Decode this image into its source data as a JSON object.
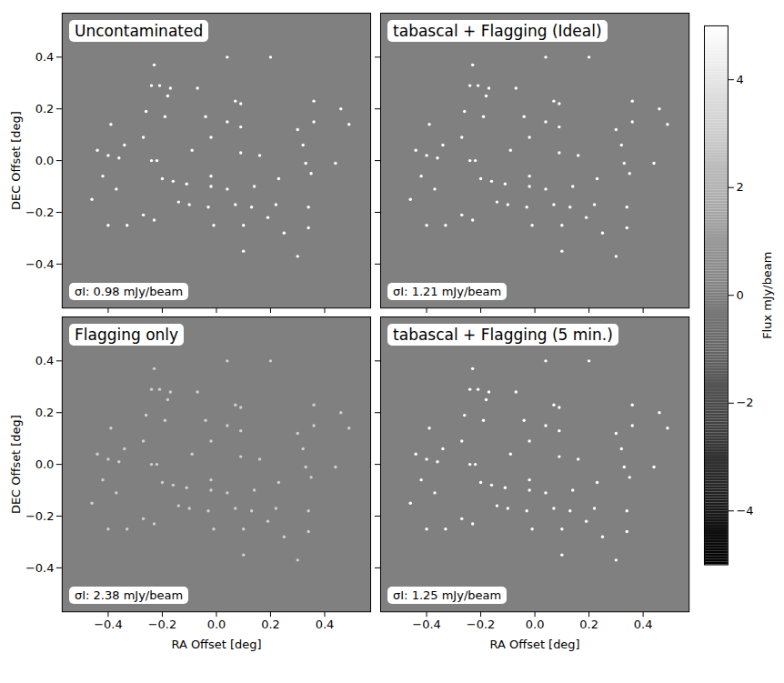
{
  "chart_data": [
    {
      "type": "scatter",
      "title": "Uncontaminated",
      "annotation": "σI: 0.98 mJy/beam",
      "color": "#ffffff",
      "ylabel": "DEC Offset [deg]",
      "tick_labels": "y",
      "xlim": [
        -0.57,
        0.57
      ],
      "ylim": [
        -0.57,
        0.57
      ],
      "xticks": [
        {
          "value": -0.4,
          "label": "−0.4"
        },
        {
          "value": -0.2,
          "label": "−0.2"
        },
        {
          "value": 0,
          "label": "0.0"
        },
        0.2,
        0.4
      ],
      "yticks": [
        {
          "value": -0.4,
          "label": "−0.4"
        },
        {
          "value": -0.2,
          "label": "−0.2"
        },
        {
          "value": 0,
          "label": "0.0"
        },
        0.2,
        0.4
      ],
      "x": [
        -0.07,
        0.04,
        0.2,
        0.36,
        -0.23,
        -0.24,
        -0.21,
        -0.17,
        -0.18,
        0.07,
        0.09,
        -0.26,
        -0.19,
        -0.04,
        0.04,
        0.09,
        0.3,
        0.36,
        0.46,
        0.49,
        -0.39,
        -0.34,
        -0.44,
        -0.4,
        -0.36,
        -0.27,
        -0.24,
        -0.22,
        -0.09,
        -0.02,
        0.09,
        0.16,
        0.32,
        0.33,
        0.44,
        -0.42,
        -0.46,
        -0.37,
        -0.2,
        -0.16,
        -0.11,
        -0.02,
        -0.02,
        0.04,
        0.14,
        0.23,
        0.35,
        -0.27,
        -0.14,
        -0.1,
        -0.03,
        0.07,
        0.13,
        0.22,
        0.34,
        0.34,
        -0.4,
        -0.33,
        -0.23,
        -0.01,
        0.1,
        0.19,
        0.25,
        0.1,
        0.3
      ],
      "y": [
        0.28,
        0.4,
        0.4,
        0.23,
        0.37,
        0.29,
        0.29,
        0.28,
        0.25,
        0.23,
        0.22,
        0.19,
        0.17,
        0.17,
        0.15,
        0.13,
        0.12,
        0.15,
        0.2,
        0.14,
        0.14,
        0.06,
        0.04,
        0.02,
        0.01,
        0.09,
        0.0,
        0.0,
        0.04,
        0.09,
        0.03,
        0.02,
        0.06,
        -0.01,
        -0.01,
        -0.06,
        -0.15,
        -0.11,
        -0.07,
        -0.08,
        -0.09,
        -0.06,
        -0.1,
        -0.11,
        -0.1,
        -0.07,
        -0.05,
        -0.21,
        -0.16,
        -0.17,
        -0.18,
        -0.17,
        -0.18,
        -0.17,
        -0.18,
        -0.26,
        -0.25,
        -0.25,
        -0.23,
        -0.25,
        -0.25,
        -0.22,
        -0.28,
        -0.35,
        -0.37
      ]
    },
    {
      "type": "scatter",
      "title": "tabascal + Flagging (Ideal)",
      "annotation": "σI: 1.21 mJy/beam",
      "color": "#ffffff",
      "tick_labels": false,
      "xlim": [
        -0.57,
        0.57
      ],
      "ylim": [
        -0.57,
        0.57
      ],
      "xticks": [
        {
          "value": -0.4,
          "label": "−0.4"
        },
        {
          "value": -0.2,
          "label": "−0.2"
        },
        {
          "value": 0,
          "label": "0.0"
        },
        0.2,
        0.4
      ],
      "yticks": [
        {
          "value": -0.4,
          "label": "−0.4"
        },
        {
          "value": -0.2,
          "label": "−0.2"
        },
        {
          "value": 0,
          "label": "0.0"
        },
        0.2,
        0.4
      ],
      "x": [
        -0.07,
        0.04,
        0.2,
        0.36,
        -0.23,
        -0.24,
        -0.21,
        -0.17,
        -0.18,
        0.07,
        0.09,
        -0.26,
        -0.19,
        -0.04,
        0.04,
        0.09,
        0.3,
        0.36,
        0.46,
        0.49,
        -0.39,
        -0.34,
        -0.44,
        -0.4,
        -0.36,
        -0.27,
        -0.24,
        -0.22,
        -0.09,
        -0.02,
        0.09,
        0.16,
        0.32,
        0.33,
        0.44,
        -0.42,
        -0.46,
        -0.37,
        -0.2,
        -0.16,
        -0.11,
        -0.02,
        -0.02,
        0.04,
        0.14,
        0.23,
        0.35,
        -0.27,
        -0.14,
        -0.1,
        -0.03,
        0.07,
        0.13,
        0.22,
        0.34,
        0.34,
        -0.4,
        -0.33,
        -0.23,
        -0.01,
        0.1,
        0.19,
        0.25,
        0.1,
        0.3
      ],
      "y": [
        0.28,
        0.4,
        0.4,
        0.23,
        0.37,
        0.29,
        0.29,
        0.28,
        0.25,
        0.23,
        0.22,
        0.19,
        0.17,
        0.17,
        0.15,
        0.13,
        0.12,
        0.15,
        0.2,
        0.14,
        0.14,
        0.06,
        0.04,
        0.02,
        0.01,
        0.09,
        0.0,
        0.0,
        0.04,
        0.09,
        0.03,
        0.02,
        0.06,
        -0.01,
        -0.01,
        -0.06,
        -0.15,
        -0.11,
        -0.07,
        -0.08,
        -0.09,
        -0.06,
        -0.1,
        -0.11,
        -0.1,
        -0.07,
        -0.05,
        -0.21,
        -0.16,
        -0.17,
        -0.18,
        -0.17,
        -0.18,
        -0.17,
        -0.18,
        -0.26,
        -0.25,
        -0.25,
        -0.23,
        -0.25,
        -0.25,
        -0.22,
        -0.28,
        -0.35,
        -0.37
      ]
    },
    {
      "type": "scatter",
      "title": "Flagging only",
      "annotation": "σI: 2.38 mJy/beam",
      "color": "#d0d0d0",
      "xlabel": "RA Offset [deg]",
      "ylabel": "DEC Offset [deg]",
      "xlim": [
        -0.57,
        0.57
      ],
      "ylim": [
        -0.57,
        0.57
      ],
      "xticks": [
        {
          "value": -0.4,
          "label": "−0.4"
        },
        {
          "value": -0.2,
          "label": "−0.2"
        },
        {
          "value": 0,
          "label": "0.0"
        },
        0.2,
        0.4
      ],
      "yticks": [
        {
          "value": -0.4,
          "label": "−0.4"
        },
        {
          "value": -0.2,
          "label": "−0.2"
        },
        {
          "value": 0,
          "label": "0.0"
        },
        0.2,
        0.4
      ],
      "x": [
        -0.07,
        0.04,
        0.2,
        0.36,
        -0.23,
        -0.24,
        -0.21,
        -0.17,
        -0.18,
        0.07,
        0.09,
        -0.26,
        -0.19,
        -0.04,
        0.04,
        0.09,
        0.3,
        0.36,
        0.46,
        0.49,
        -0.39,
        -0.34,
        -0.44,
        -0.4,
        -0.36,
        -0.27,
        -0.24,
        -0.22,
        -0.09,
        -0.02,
        0.09,
        0.16,
        0.32,
        0.33,
        0.44,
        -0.42,
        -0.46,
        -0.37,
        -0.2,
        -0.16,
        -0.11,
        -0.02,
        -0.02,
        0.04,
        0.14,
        0.23,
        0.35,
        -0.27,
        -0.14,
        -0.1,
        -0.03,
        0.07,
        0.13,
        0.22,
        0.34,
        0.34,
        -0.4,
        -0.33,
        -0.23,
        -0.01,
        0.1,
        0.19,
        0.25,
        0.1,
        0.3
      ],
      "y": [
        0.28,
        0.4,
        0.4,
        0.23,
        0.37,
        0.29,
        0.29,
        0.28,
        0.25,
        0.23,
        0.22,
        0.19,
        0.17,
        0.17,
        0.15,
        0.13,
        0.12,
        0.15,
        0.2,
        0.14,
        0.14,
        0.06,
        0.04,
        0.02,
        0.01,
        0.09,
        0.0,
        0.0,
        0.04,
        0.09,
        0.03,
        0.02,
        0.06,
        -0.01,
        -0.01,
        -0.06,
        -0.15,
        -0.11,
        -0.07,
        -0.08,
        -0.09,
        -0.06,
        -0.1,
        -0.11,
        -0.1,
        -0.07,
        -0.05,
        -0.21,
        -0.16,
        -0.17,
        -0.18,
        -0.17,
        -0.18,
        -0.17,
        -0.18,
        -0.26,
        -0.25,
        -0.25,
        -0.23,
        -0.25,
        -0.25,
        -0.22,
        -0.28,
        -0.35,
        -0.37
      ]
    },
    {
      "type": "scatter",
      "title": "tabascal + Flagging (5 min.)",
      "annotation": "σI: 1.25 mJy/beam",
      "color": "#ffffff",
      "xlabel": "RA Offset [deg]",
      "tick_labels": "x",
      "xlim": [
        -0.57,
        0.57
      ],
      "ylim": [
        -0.57,
        0.57
      ],
      "xticks": [
        {
          "value": -0.4,
          "label": "−0.4"
        },
        {
          "value": -0.2,
          "label": "−0.2"
        },
        {
          "value": 0,
          "label": "0.0"
        },
        0.2,
        0.4
      ],
      "yticks": [
        {
          "value": -0.4,
          "label": "−0.4"
        },
        {
          "value": -0.2,
          "label": "−0.2"
        },
        {
          "value": 0,
          "label": "0.0"
        },
        0.2,
        0.4
      ],
      "x": [
        -0.07,
        0.04,
        0.2,
        0.36,
        -0.23,
        -0.24,
        -0.21,
        -0.17,
        -0.18,
        0.07,
        0.09,
        -0.26,
        -0.19,
        -0.04,
        0.04,
        0.09,
        0.3,
        0.36,
        0.46,
        0.49,
        -0.39,
        -0.34,
        -0.44,
        -0.4,
        -0.36,
        -0.27,
        -0.24,
        -0.22,
        -0.09,
        -0.02,
        0.09,
        0.16,
        0.32,
        0.33,
        0.44,
        -0.42,
        -0.46,
        -0.37,
        -0.2,
        -0.16,
        -0.11,
        -0.02,
        -0.02,
        0.04,
        0.14,
        0.23,
        0.35,
        -0.27,
        -0.14,
        -0.1,
        -0.03,
        0.07,
        0.13,
        0.22,
        0.34,
        0.34,
        -0.4,
        -0.33,
        -0.23,
        -0.01,
        0.1,
        0.19,
        0.25,
        0.1,
        0.3
      ],
      "y": [
        0.28,
        0.4,
        0.4,
        0.23,
        0.37,
        0.29,
        0.29,
        0.28,
        0.25,
        0.23,
        0.22,
        0.19,
        0.17,
        0.17,
        0.15,
        0.13,
        0.12,
        0.15,
        0.2,
        0.14,
        0.14,
        0.06,
        0.04,
        0.02,
        0.01,
        0.09,
        0.0,
        0.0,
        0.04,
        0.09,
        0.03,
        0.02,
        0.06,
        -0.01,
        -0.01,
        -0.06,
        -0.15,
        -0.11,
        -0.07,
        -0.08,
        -0.09,
        -0.06,
        -0.1,
        -0.11,
        -0.1,
        -0.07,
        -0.05,
        -0.21,
        -0.16,
        -0.17,
        -0.18,
        -0.17,
        -0.18,
        -0.17,
        -0.18,
        -0.26,
        -0.25,
        -0.25,
        -0.23,
        -0.25,
        -0.25,
        -0.22,
        -0.28,
        -0.35,
        -0.37
      ]
    }
  ],
  "colorbar": {
    "label": "Flux mJy/beam",
    "range": [
      -5,
      5
    ],
    "ticks": [
      {
        "value": -4,
        "label": "−4"
      },
      {
        "value": -2,
        "label": "−2"
      },
      0,
      2,
      4
    ]
  }
}
